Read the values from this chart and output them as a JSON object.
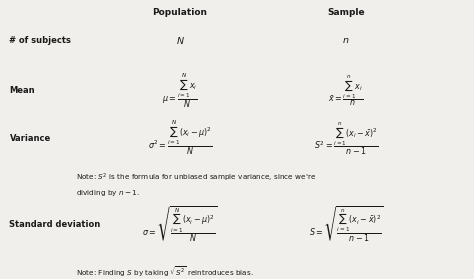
{
  "bg_color": "#f0efeb",
  "text_color": "#1a1a1a",
  "title_pop": "Population",
  "title_samp": "Sample",
  "col_label": 0.02,
  "col_pop": 0.38,
  "col_samp": 0.73,
  "fs_header": 6.5,
  "fs_label": 6.0,
  "fs_formula": 5.8,
  "fs_note": 5.2,
  "note1_line1": "Note: $S^2$ is the formula for unbiased sample variance, since we're",
  "note1_line2": "dividing by $n-1$.",
  "note2": "Note: Finding $S$ by taking $\\sqrt{S^2}$ reintroduces bias."
}
